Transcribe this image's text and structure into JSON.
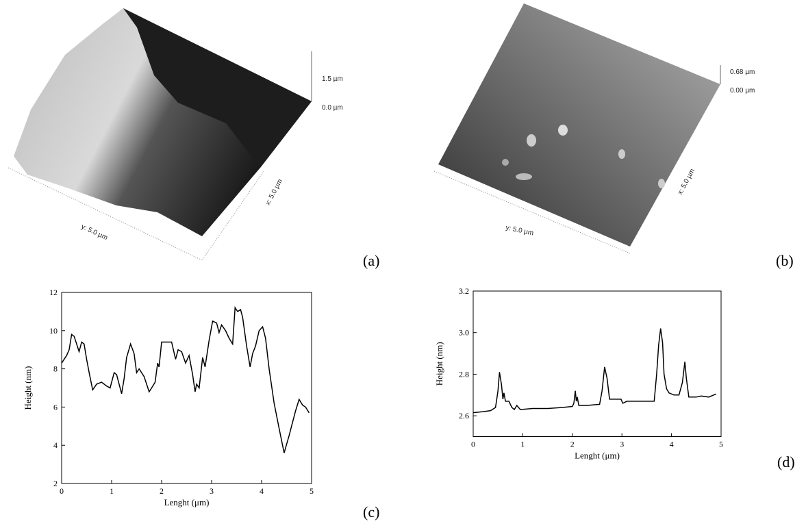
{
  "panels": [
    {
      "label": "(a)",
      "z_top": "1.5 µm",
      "z_bottom": "0.0 µm",
      "x_axis": "x: 5.0 µm",
      "y_axis": "y: 5.0 µm"
    },
    {
      "label": "(b)",
      "z_top": "0.68 µm",
      "z_bottom": "0.00 µm",
      "x_axis": "x: 5.0 µm",
      "y_axis": "y: 5.0 µm"
    }
  ],
  "chart_data": [
    {
      "type": "line",
      "panel_label": "(c)",
      "x_label": "Lenght (μm)",
      "y_label": "Height (nm)",
      "color": "#000000",
      "xlim": [
        0,
        5
      ],
      "xticks": [
        0,
        1,
        2,
        3,
        4,
        5
      ],
      "ylim": [
        2,
        12
      ],
      "yticks": [
        2,
        4,
        6,
        8,
        10,
        12
      ],
      "x": [
        0,
        0.05,
        0.1,
        0.15,
        0.2,
        0.25,
        0.3,
        0.35,
        0.4,
        0.45,
        0.5,
        0.55,
        0.62,
        0.7,
        0.8,
        0.9,
        0.97,
        1.05,
        1.1,
        1.2,
        1.25,
        1.3,
        1.38,
        1.45,
        1.5,
        1.55,
        1.65,
        1.75,
        1.8,
        1.87,
        1.92,
        1.95,
        2.0,
        2.1,
        2.2,
        2.28,
        2.33,
        2.4,
        2.48,
        2.55,
        2.62,
        2.67,
        2.7,
        2.75,
        2.82,
        2.87,
        2.95,
        3.02,
        3.1,
        3.15,
        3.2,
        3.28,
        3.35,
        3.42,
        3.47,
        3.52,
        3.58,
        3.62,
        3.7,
        3.77,
        3.82,
        3.88,
        3.95,
        4.02,
        4.08,
        4.15,
        4.25,
        4.35,
        4.45,
        4.55,
        4.68,
        4.75,
        4.82,
        4.88,
        4.95
      ],
      "values": [
        8.3,
        8.5,
        8.7,
        9.0,
        9.8,
        9.7,
        9.3,
        8.9,
        9.4,
        9.3,
        8.5,
        7.8,
        6.9,
        7.2,
        7.3,
        7.1,
        7.0,
        7.8,
        7.7,
        6.7,
        7.5,
        8.6,
        9.3,
        8.8,
        7.8,
        8.0,
        7.6,
        6.8,
        7.0,
        7.3,
        8.3,
        8.1,
        9.4,
        9.4,
        9.4,
        8.5,
        9.0,
        8.9,
        8.3,
        8.7,
        7.7,
        6.8,
        7.2,
        7.0,
        8.6,
        8.1,
        9.5,
        10.5,
        10.4,
        9.9,
        10.3,
        10.0,
        9.6,
        9.3,
        11.2,
        11.0,
        11.1,
        10.7,
        9.2,
        8.1,
        8.8,
        9.2,
        10.0,
        10.2,
        9.6,
        8.0,
        6.2,
        4.9,
        3.6,
        4.5,
        5.8,
        6.4,
        6.1,
        6.0,
        5.7
      ]
    },
    {
      "type": "line",
      "panel_label": "(d)",
      "x_label": "Lenght (μm)",
      "y_label": "Height (nm)",
      "color": "#000000",
      "xlim": [
        0,
        5
      ],
      "xticks": [
        0,
        1,
        2,
        3,
        4,
        5
      ],
      "ylim": [
        2.5,
        3.2
      ],
      "yticks": [
        2.6,
        2.8,
        {
          "value": 3,
          "label": "3.0"
        },
        3.2
      ],
      "x": [
        0,
        0.2,
        0.35,
        0.45,
        0.5,
        0.53,
        0.57,
        0.6,
        0.62,
        0.65,
        0.72,
        0.78,
        0.83,
        0.88,
        0.95,
        1.2,
        1.5,
        1.8,
        2.0,
        2.03,
        2.06,
        2.08,
        2.1,
        2.13,
        2.3,
        2.55,
        2.6,
        2.65,
        2.7,
        2.75,
        2.9,
        2.98,
        3.02,
        3.1,
        3.5,
        3.65,
        3.7,
        3.74,
        3.78,
        3.82,
        3.85,
        3.9,
        3.95,
        4.05,
        4.15,
        4.22,
        4.27,
        4.3,
        4.35,
        4.5,
        4.6,
        4.75,
        4.9
      ],
      "values": [
        2.615,
        2.62,
        2.625,
        2.64,
        2.72,
        2.81,
        2.75,
        2.68,
        2.71,
        2.67,
        2.67,
        2.64,
        2.63,
        2.65,
        2.63,
        2.635,
        2.635,
        2.64,
        2.645,
        2.66,
        2.72,
        2.67,
        2.69,
        2.65,
        2.65,
        2.655,
        2.72,
        2.835,
        2.78,
        2.68,
        2.68,
        2.68,
        2.66,
        2.67,
        2.67,
        2.67,
        2.8,
        2.94,
        3.02,
        2.95,
        2.8,
        2.73,
        2.71,
        2.7,
        2.7,
        2.76,
        2.86,
        2.78,
        2.69,
        2.69,
        2.695,
        2.69,
        2.705
      ]
    }
  ]
}
